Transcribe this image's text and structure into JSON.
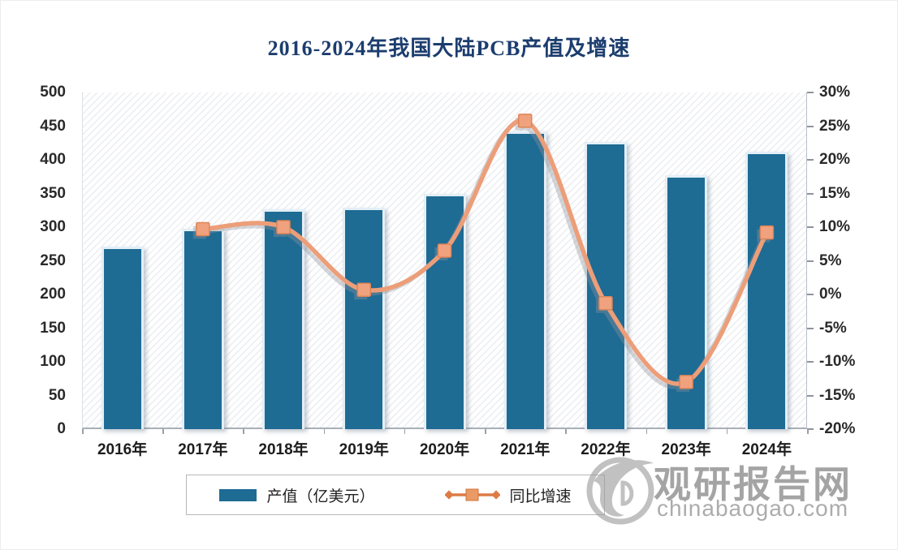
{
  "title": "2016-2024年我国大陆PCB产值及增速",
  "legend": {
    "output_label": "产值（亿美元）",
    "growth_label": "同比增速"
  },
  "watermark": {
    "site_name": "观研报告网",
    "site_url": "chinabaogao.com"
  },
  "colors": {
    "bar": "#1e6b94",
    "line": "#ec9e79",
    "marker_fill": "#f0a27e",
    "marker_stroke": "#de8557",
    "title_text": "#1c3d6e",
    "watermark_gray": "#949494"
  },
  "chart_data": {
    "type": "bar",
    "title": "2016-2024年我国大陆PCB产值及增速",
    "categories": [
      "2016年",
      "2017年",
      "2018年",
      "2019年",
      "2020年",
      "2021年",
      "2022年",
      "2023年",
      "2024年"
    ],
    "series": [
      {
        "name": "产值（亿美元）",
        "type": "bar",
        "axis": "left",
        "values": [
          271,
          297,
          327,
          329,
          350,
          442,
          427,
          377,
          412
        ]
      },
      {
        "name": "同比增速",
        "type": "line",
        "axis": "right",
        "unit": "%",
        "values": [
          null,
          9.7,
          10.0,
          0.7,
          6.5,
          25.8,
          -1.3,
          -13.0,
          9.2
        ]
      }
    ],
    "left_axis": {
      "min": 0,
      "max": 500,
      "step": 50,
      "ticks": [
        "500",
        "450",
        "400",
        "350",
        "300",
        "250",
        "200",
        "150",
        "100",
        "50",
        "0"
      ]
    },
    "right_axis": {
      "min": -20,
      "max": 30,
      "step": 5,
      "ticks": [
        "30%",
        "25%",
        "20%",
        "15%",
        "10%",
        "5%",
        "0%",
        "-5%",
        "-10%",
        "-15%",
        "-20%"
      ]
    },
    "grid": false,
    "legend_position": "bottom",
    "plot_background": "diagonal-hatch"
  }
}
